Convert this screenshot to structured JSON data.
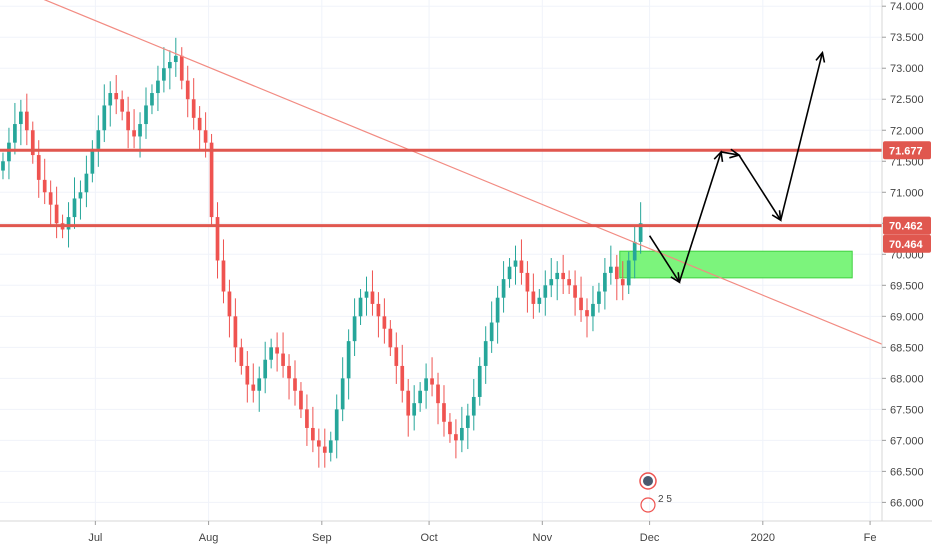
{
  "chart_data": {
    "type": "candlestick",
    "title": "",
    "xlabel": "",
    "ylabel": "",
    "ylim": [
      65.7,
      74.1
    ],
    "y_ticks": [
      "74.000",
      "73.500",
      "73.000",
      "72.500",
      "72.000",
      "71.500",
      "71.000",
      "70.500",
      "70.000",
      "69.500",
      "69.000",
      "68.500",
      "68.000",
      "67.500",
      "67.000",
      "66.500",
      "66.000"
    ],
    "x_ticks": [
      {
        "label": "Jul",
        "bar": 16
      },
      {
        "label": "Aug",
        "bar": 35
      },
      {
        "label": "Sep",
        "bar": 54
      },
      {
        "label": "Oct",
        "bar": 72
      },
      {
        "label": "Nov",
        "bar": 91
      },
      {
        "label": "Dec",
        "bar": 109
      },
      {
        "label": "2020",
        "bar": 128
      },
      {
        "label": "Fe",
        "bar": 146
      }
    ],
    "x_range": [
      0,
      148
    ],
    "colors": {
      "up": "#26a69a",
      "down": "#ef5350",
      "level": "#e0574f",
      "trend": "#f28b82",
      "zone": "#7cf47c"
    },
    "closes": [
      71.5,
      71.8,
      72.1,
      72.3,
      72.0,
      71.6,
      71.2,
      71.0,
      70.8,
      70.5,
      70.4,
      70.6,
      70.9,
      71.0,
      71.3,
      71.7,
      72.0,
      72.4,
      72.6,
      72.5,
      72.3,
      72.0,
      71.9,
      72.1,
      72.4,
      72.6,
      72.8,
      73.0,
      73.1,
      73.2,
      72.8,
      72.5,
      72.2,
      72.0,
      71.8,
      70.6,
      69.9,
      69.4,
      69.0,
      68.5,
      68.2,
      67.9,
      67.8,
      68.0,
      68.3,
      68.5,
      68.4,
      68.2,
      68.0,
      67.8,
      67.5,
      67.2,
      67.0,
      66.9,
      66.8,
      67.0,
      67.5,
      68.0,
      68.6,
      69.0,
      69.3,
      69.4,
      69.2,
      69.0,
      68.8,
      68.5,
      68.2,
      67.8,
      67.4,
      67.6,
      67.8,
      68.0,
      67.9,
      67.6,
      67.3,
      67.1,
      67.0,
      67.2,
      67.4,
      67.7,
      68.2,
      68.6,
      68.9,
      69.3,
      69.6,
      69.8,
      69.9,
      69.7,
      69.4,
      69.2,
      69.3,
      69.5,
      69.6,
      69.7,
      69.6,
      69.5,
      69.3,
      69.1,
      69.0,
      69.2,
      69.4,
      69.7,
      69.8,
      69.6,
      69.5,
      69.9,
      70.2,
      70.5
    ],
    "levels": [
      {
        "value": 71.677,
        "label": "71.677"
      },
      {
        "value": 70.462,
        "label": "70.462"
      }
    ],
    "last_price_label": "70.464",
    "last_price_value": 70.46,
    "trendline": {
      "x": [
        0,
        148
      ],
      "y": [
        74.4,
        68.55
      ]
    },
    "zone": {
      "x": [
        104,
        143
      ],
      "y": [
        69.62,
        70.05
      ]
    },
    "projection": {
      "x": [
        109,
        114,
        121,
        124,
        131,
        138
      ],
      "y": [
        70.3,
        69.55,
        71.65,
        71.6,
        70.55,
        73.25
      ]
    },
    "annotation_text": "2 5"
  }
}
